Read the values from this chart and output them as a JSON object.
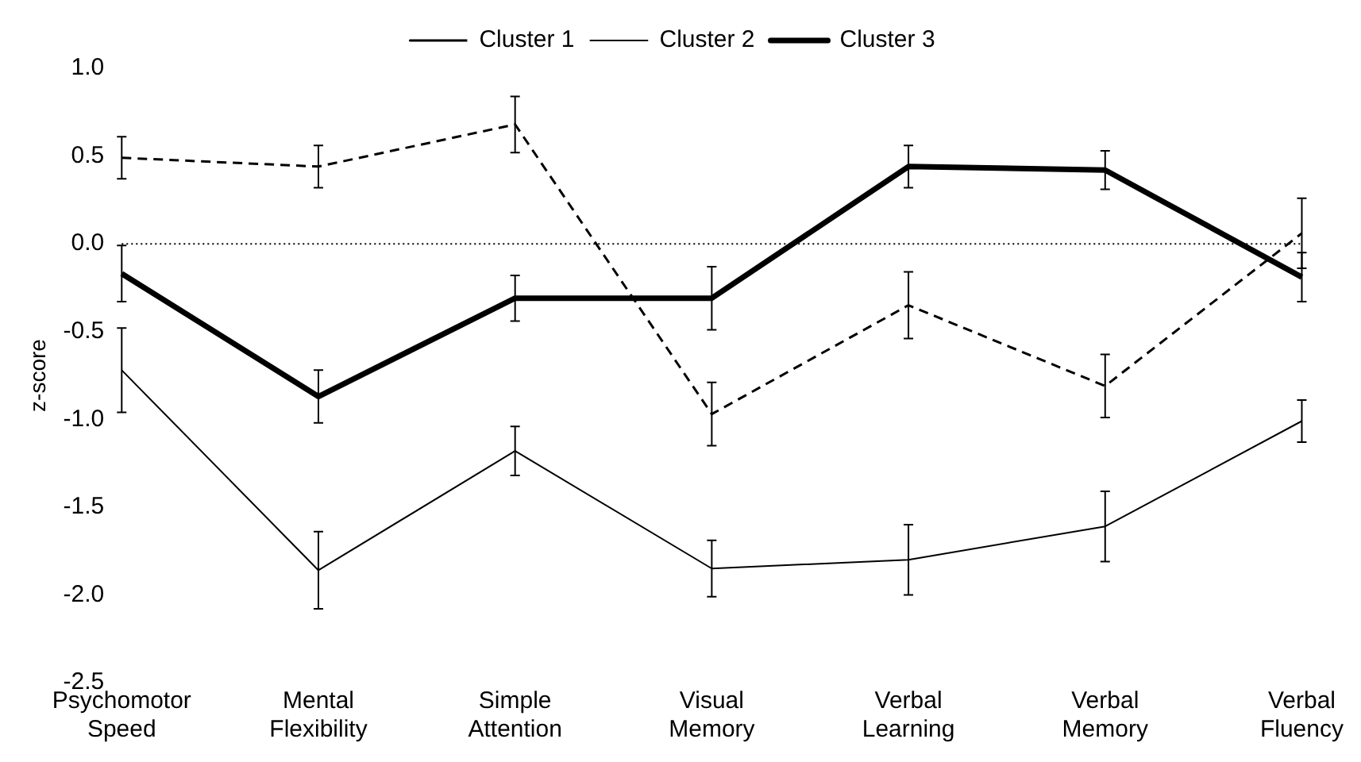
{
  "chart_data": {
    "type": "line",
    "ylabel": "z-score",
    "categories": [
      "Psychomotor Speed",
      "Mental Flexibility",
      "Simple Attention",
      "Visual Memory",
      "Verbal Learning",
      "Verbal Memory",
      "Verbal Fluency"
    ],
    "series": [
      {
        "name": "Cluster 1",
        "color": "#000000",
        "line_style": "dashed",
        "values": [
          0.49,
          0.44,
          0.68,
          -0.97,
          -0.35,
          -0.81,
          0.06
        ],
        "errors": [
          0.12,
          0.12,
          0.16,
          0.18,
          0.19,
          0.18,
          0.2
        ]
      },
      {
        "name": "Cluster 2",
        "color": "#000000",
        "line_style": "solid",
        "values": [
          -0.72,
          -1.86,
          -1.18,
          -1.85,
          -1.8,
          -1.61,
          -1.01
        ],
        "errors": [
          0.24,
          0.22,
          0.14,
          0.16,
          0.2,
          0.2,
          0.12
        ]
      },
      {
        "name": "Cluster 3",
        "color": "#000000",
        "line_style": "solid",
        "values": [
          -0.17,
          -0.87,
          -0.31,
          -0.31,
          0.44,
          0.42,
          -0.19
        ],
        "errors": [
          0.16,
          0.15,
          0.13,
          0.18,
          0.12,
          0.11,
          0.14
        ]
      }
    ],
    "ylim": [
      -2.5,
      1.0
    ],
    "yticks": [
      {
        "value": -2.5,
        "label": "-2.5"
      },
      {
        "value": -2,
        "label": "-2.0"
      },
      {
        "value": -1.5,
        "label": "-1.5"
      },
      {
        "value": -1,
        "label": "-1.0"
      },
      {
        "value": -0.5,
        "label": "-0.5"
      },
      {
        "value": 0,
        "label": "0.0"
      },
      {
        "value": 0.5,
        "label": "0.5"
      },
      {
        "value": 1,
        "label": "1.0"
      }
    ],
    "ref_lines": [
      {
        "axis": "y",
        "value": 0,
        "line_style": "dotted",
        "color": "#000000"
      }
    ],
    "grid": false,
    "legend": "top",
    "marker": "none"
  }
}
